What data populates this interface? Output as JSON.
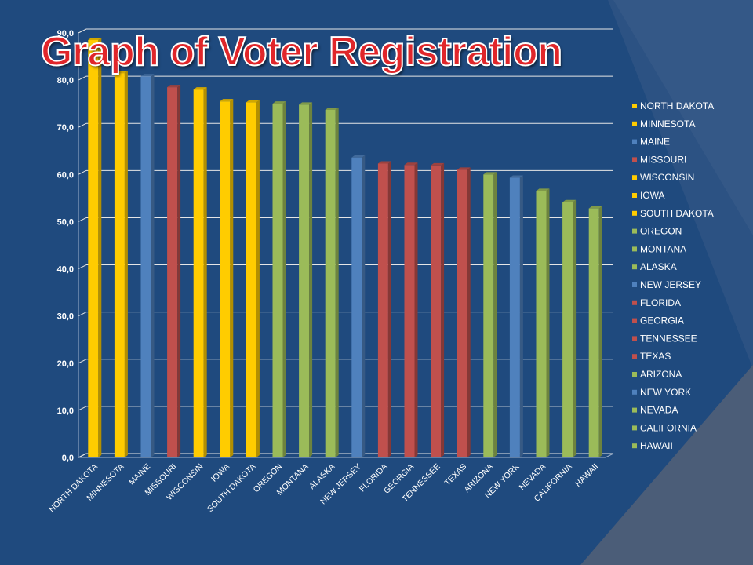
{
  "slide": {
    "title": "Graph of Voter Registration"
  },
  "colors": {
    "background": "#1f4a7e",
    "yellow": "#ffcc00",
    "blue": "#4f81bd",
    "red": "#c0504d",
    "green": "#9bbb59",
    "gridline": "#e6e6e6",
    "text": "#ffffff"
  },
  "chart_data": {
    "type": "bar",
    "title": "Graph of Voter Registration",
    "xlabel": "",
    "ylabel": "",
    "ylim": [
      0,
      90
    ],
    "yticks": [
      "0,0",
      "10,0",
      "20,0",
      "30,0",
      "40,0",
      "50,0",
      "60,0",
      "70,0",
      "80,0",
      "90,0"
    ],
    "grid": true,
    "legend_position": "right",
    "categories": [
      "NORTH DAKOTA",
      "MINNESOTA",
      "MAINE",
      "MISSOURI",
      "WISCONSIN",
      "IOWA",
      "SOUTH DAKOTA",
      "OREGON",
      "MONTANA",
      "ALASKA",
      "NEW JERSEY",
      "FLORIDA",
      "GEORGIA",
      "TENNESSEE",
      "TEXAS",
      "ARIZONA",
      "NEW YORK",
      "NEVADA",
      "CALIFORNIA",
      "HAWAII"
    ],
    "values": [
      88.5,
      81.5,
      80.8,
      78.5,
      78.0,
      75.5,
      75.3,
      75.0,
      74.8,
      73.7,
      63.6,
      62.3,
      62.0,
      61.9,
      61.0,
      60.0,
      59.3,
      56.5,
      54.1,
      52.8
    ],
    "bar_colors": [
      "yellow",
      "yellow",
      "blue",
      "red",
      "yellow",
      "yellow",
      "yellow",
      "green",
      "green",
      "green",
      "blue",
      "red",
      "red",
      "red",
      "red",
      "green",
      "blue",
      "green",
      "green",
      "green"
    ]
  }
}
